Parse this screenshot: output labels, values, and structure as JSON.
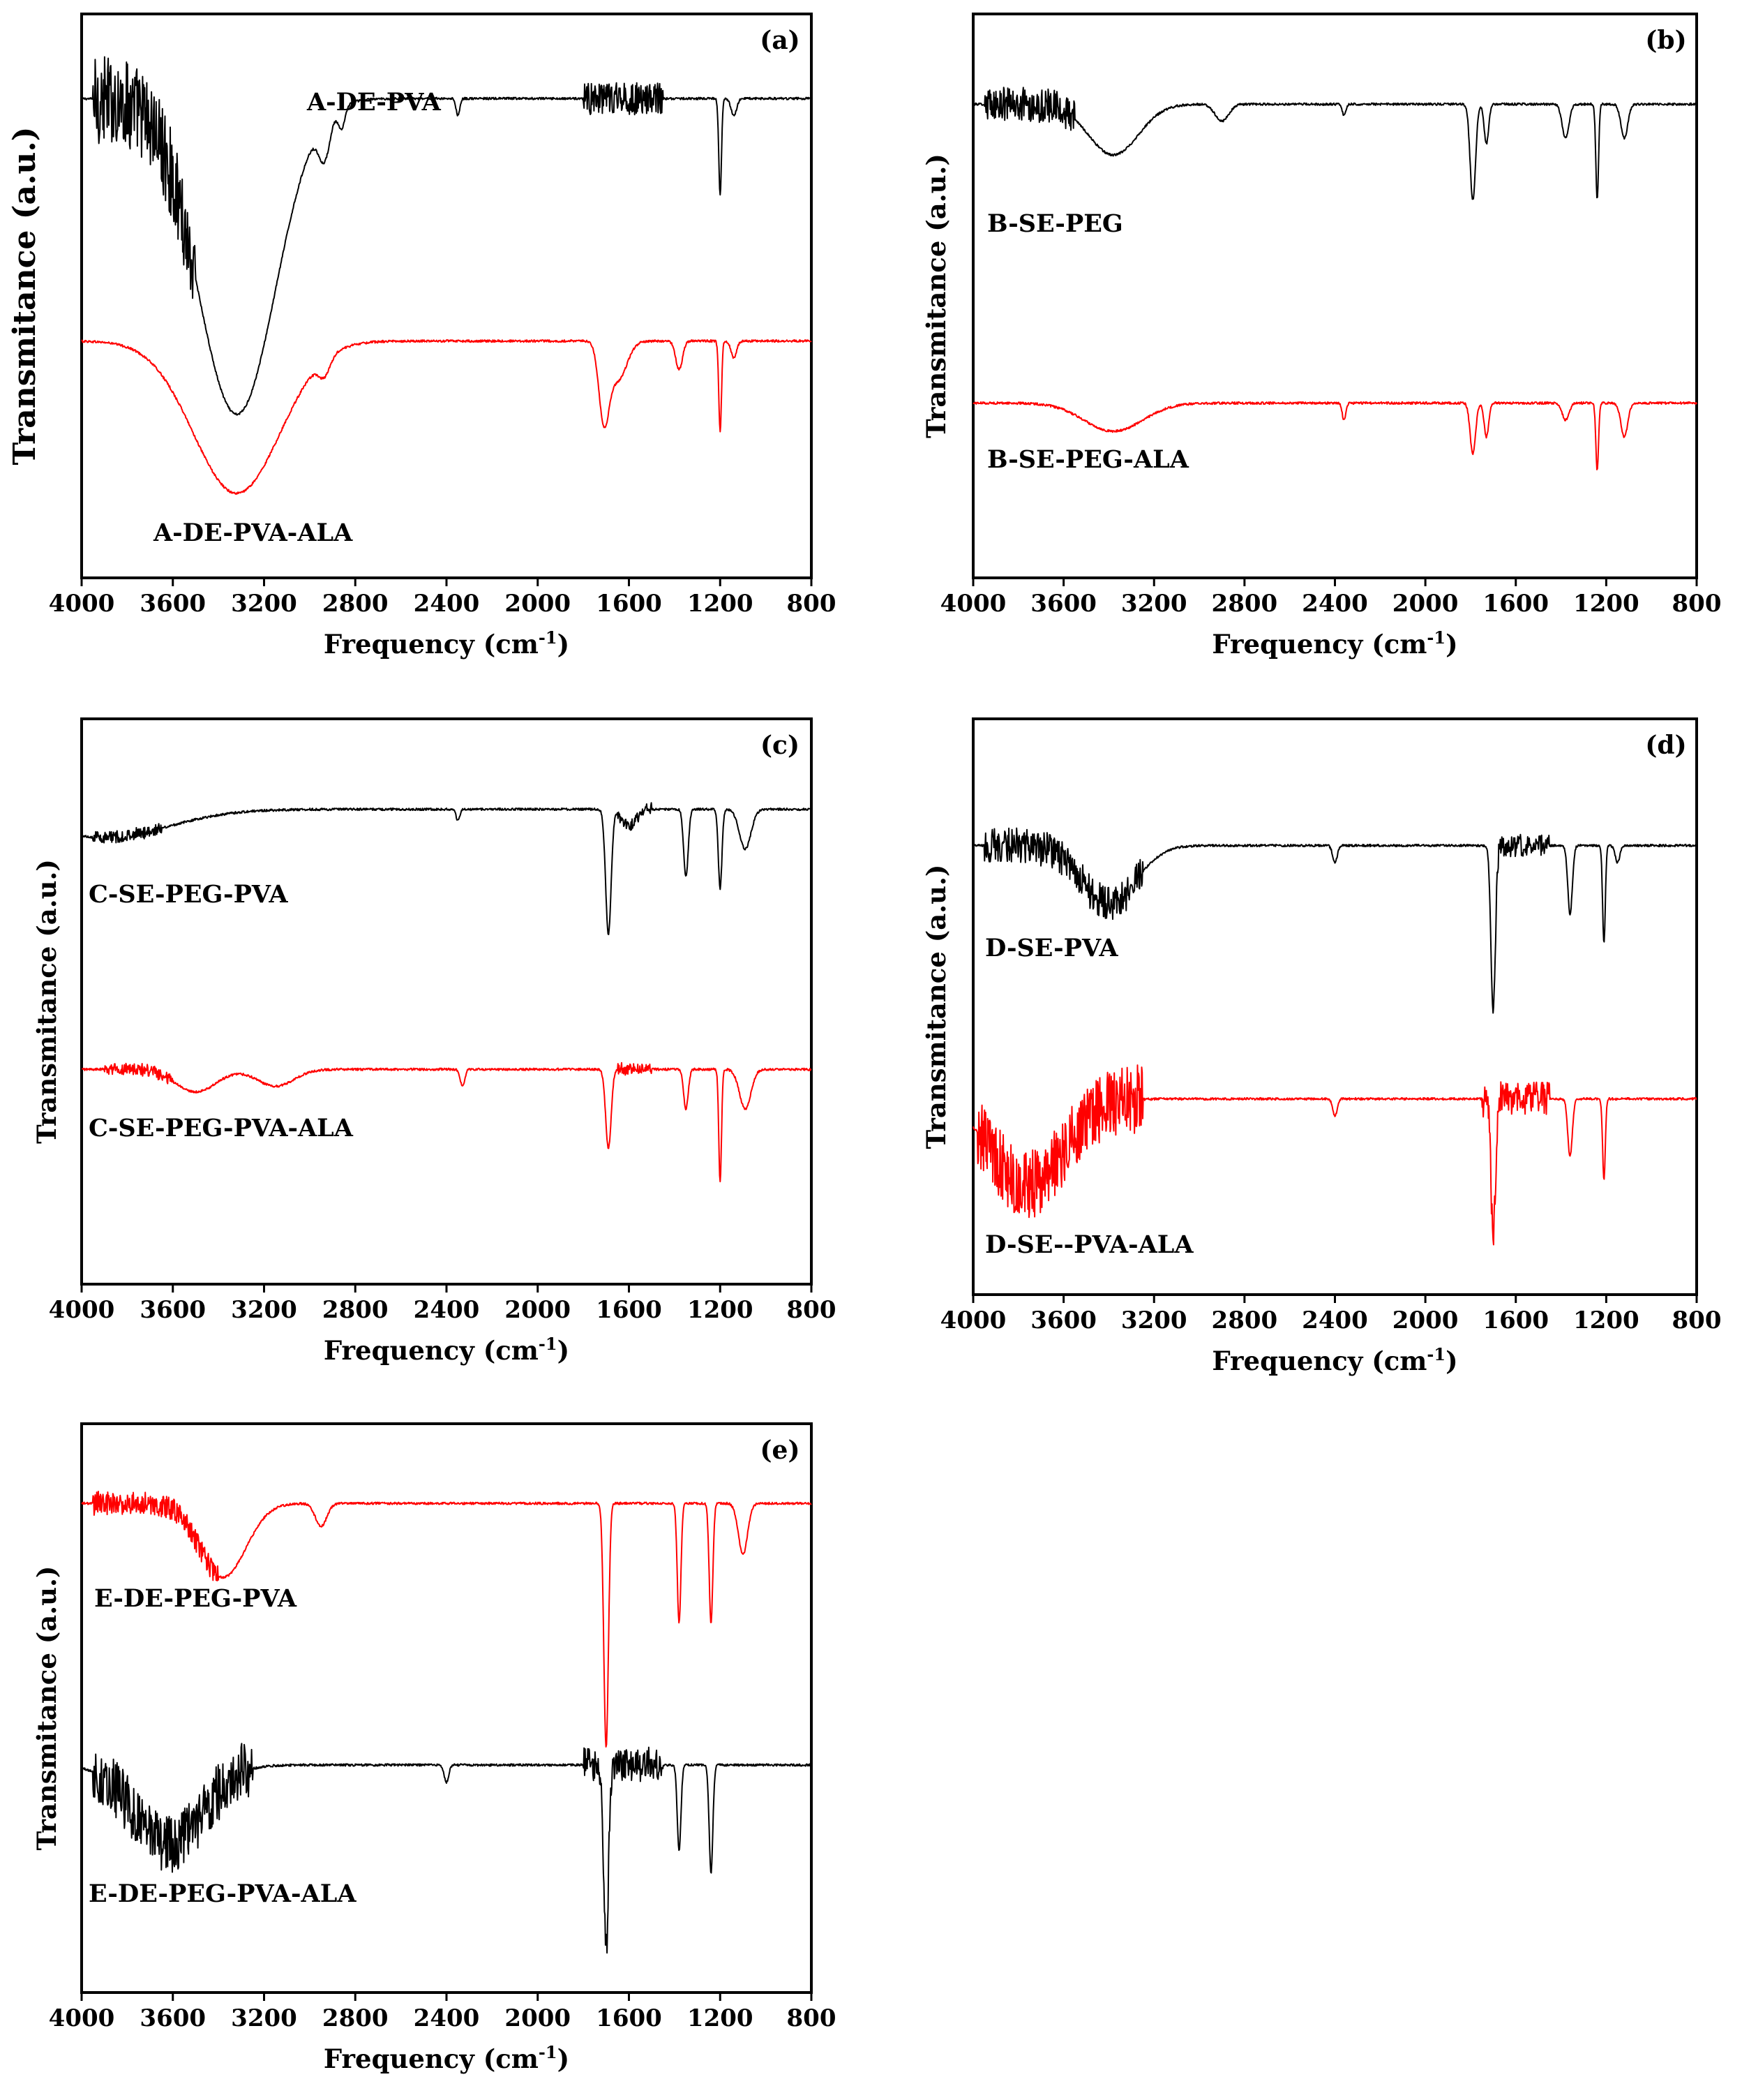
{
  "chart_data": [
    {
      "type": "line",
      "panel_label": "(a)",
      "xlabel_text": "Frequency (cm",
      "xlabel_sup": "-1",
      "xlabel_close": ")",
      "ylabel": "Transmitance (a.u.)",
      "xlim": [
        4000,
        800
      ],
      "x_reversed": true,
      "xticks": [
        "4000",
        "3600",
        "3200",
        "2800",
        "2400",
        "2000",
        "1600",
        "1200",
        "800"
      ],
      "series": [
        {
          "name": "A-DE-PVA",
          "color": "#000000",
          "baseline": 0.85,
          "noise": [
            [
              3950,
              3500,
              0.08
            ],
            [
              1800,
              1450,
              0.03
            ]
          ],
          "peaks": [
            [
              3320,
              170,
              0.56
            ],
            [
              2935,
              25,
              0.07
            ],
            [
              2860,
              15,
              0.04
            ],
            [
              2350,
              8,
              0.03
            ],
            [
              1200,
              6,
              0.17
            ],
            [
              1140,
              12,
              0.03
            ]
          ]
        },
        {
          "name": "A-DE-PVA-ALA",
          "color": "#ff0000",
          "baseline": 0.42,
          "noise": [],
          "peaks": [
            [
              3320,
              190,
              0.27
            ],
            [
              2935,
              25,
              0.03
            ],
            [
              1710,
              22,
              0.13
            ],
            [
              1650,
              40,
              0.07
            ],
            [
              1380,
              15,
              0.05
            ],
            [
              1200,
              6,
              0.16
            ],
            [
              1140,
              12,
              0.03
            ]
          ]
        }
      ]
    },
    {
      "type": "line",
      "panel_label": "(b)",
      "xlabel_text": "Frequency (cm",
      "xlabel_sup": "-1",
      "xlabel_close": ")",
      "ylabel": "Transmitance (a.u.)",
      "xlim": [
        4000,
        800
      ],
      "x_reversed": true,
      "xticks": [
        "4000",
        "3600",
        "3200",
        "2800",
        "2400",
        "2000",
        "1600",
        "1200",
        "800"
      ],
      "series": [
        {
          "name": "B-SE-PEG",
          "color": "#000000",
          "baseline": 0.84,
          "noise": [
            [
              3950,
              3550,
              0.03
            ]
          ],
          "peaks": [
            [
              3380,
              110,
              0.09
            ],
            [
              2900,
              30,
              0.03
            ],
            [
              2360,
              8,
              0.02
            ],
            [
              1790,
              12,
              0.17
            ],
            [
              1730,
              10,
              0.07
            ],
            [
              1380,
              15,
              0.06
            ],
            [
              1240,
              6,
              0.17
            ],
            [
              1120,
              15,
              0.06
            ]
          ]
        },
        {
          "name": "B-SE-PEG-ALA",
          "color": "#ff0000",
          "baseline": 0.31,
          "noise": [],
          "peaks": [
            [
              3380,
              130,
              0.05
            ],
            [
              2360,
              8,
              0.03
            ],
            [
              1790,
              12,
              0.09
            ],
            [
              1730,
              10,
              0.06
            ],
            [
              1380,
              15,
              0.03
            ],
            [
              1240,
              6,
              0.12
            ],
            [
              1120,
              15,
              0.06
            ]
          ]
        }
      ]
    },
    {
      "type": "line",
      "panel_label": "(c)",
      "xlabel_text": "Frequency (cm",
      "xlabel_sup": "-1",
      "xlabel_close": ")",
      "ylabel": "Transmitance (a.u.)",
      "xlim": [
        4000,
        800
      ],
      "x_reversed": true,
      "xticks": [
        "4000",
        "3600",
        "3200",
        "2800",
        "2400",
        "2000",
        "1600",
        "1200",
        "800"
      ],
      "series": [
        {
          "name": "C-SE-PEG-PVA",
          "color": "#000000",
          "baseline": 0.84,
          "noise": [
            [
              3950,
              3650,
              0.01
            ],
            [
              1650,
              1500,
              0.01
            ]
          ],
          "peaks": [
            [
              3900,
              280,
              0.05
            ],
            [
              2350,
              8,
              0.02
            ],
            [
              1690,
              12,
              0.22
            ],
            [
              1600,
              30,
              0.03
            ],
            [
              1350,
              10,
              0.12
            ],
            [
              1200,
              8,
              0.14
            ],
            [
              1090,
              25,
              0.07
            ]
          ]
        },
        {
          "name": "C-SE-PEG-PVA-ALA",
          "color": "#ff0000",
          "baseline": 0.38,
          "noise": [
            [
              3900,
              3600,
              0.01
            ],
            [
              1650,
              1500,
              0.01
            ]
          ],
          "peaks": [
            [
              3500,
              90,
              0.04
            ],
            [
              3150,
              80,
              0.03
            ],
            [
              2330,
              10,
              0.03
            ],
            [
              1690,
              12,
              0.14
            ],
            [
              1350,
              10,
              0.07
            ],
            [
              1200,
              6,
              0.2
            ],
            [
              1090,
              25,
              0.07
            ]
          ]
        }
      ]
    },
    {
      "type": "line",
      "panel_label": "(d)",
      "xlabel_text": "Frequency (cm",
      "xlabel_sup": "-1",
      "xlabel_close": ")",
      "ylabel": "Transmitance (a.u.)",
      "xlim": [
        4000,
        800
      ],
      "x_reversed": true,
      "xticks": [
        "4000",
        "3600",
        "3200",
        "2800",
        "2400",
        "2000",
        "1600",
        "1200",
        "800"
      ],
      "series": [
        {
          "name": "D-SE-PVA",
          "color": "#000000",
          "baseline": 0.78,
          "noise": [
            [
              3950,
              3250,
              0.03
            ],
            [
              1700,
              1450,
              0.02
            ]
          ],
          "peaks": [
            [
              3400,
              120,
              0.1
            ],
            [
              2400,
              10,
              0.03
            ],
            [
              1700,
              10,
              0.29
            ],
            [
              1360,
              10,
              0.12
            ],
            [
              1210,
              6,
              0.17
            ],
            [
              1150,
              10,
              0.03
            ]
          ]
        },
        {
          "name": "D-SE--PVA-ALA",
          "color": "#ff0000",
          "baseline": 0.34,
          "noise": [
            [
              3980,
              3250,
              0.06
            ],
            [
              1750,
              1450,
              0.03
            ]
          ],
          "peaks": [
            [
              3760,
              160,
              0.15
            ],
            [
              2400,
              10,
              0.03
            ],
            [
              1700,
              10,
              0.24
            ],
            [
              1360,
              10,
              0.1
            ],
            [
              1210,
              6,
              0.14
            ]
          ]
        }
      ]
    },
    {
      "type": "line",
      "panel_label": "(e)",
      "xlabel_text": "Frequency (cm",
      "xlabel_sup": "-1",
      "xlabel_close": ")",
      "ylabel": "Transmitance (a.u.)",
      "xlim": [
        4000,
        800
      ],
      "x_reversed": true,
      "xticks": [
        "4000",
        "3600",
        "3200",
        "2800",
        "2400",
        "2000",
        "1600",
        "1200",
        "800"
      ],
      "series": [
        {
          "name": "E-DE-PEG-PVA",
          "color": "#ff0000",
          "baseline": 0.86,
          "noise": [
            [
              3950,
              3400,
              0.02
            ]
          ],
          "peaks": [
            [
              3380,
              100,
              0.13
            ],
            [
              2950,
              25,
              0.04
            ],
            [
              1700,
              10,
              0.43
            ],
            [
              1380,
              8,
              0.21
            ],
            [
              1240,
              8,
              0.21
            ],
            [
              1100,
              20,
              0.09
            ]
          ]
        },
        {
          "name": "E-DE-PEG-PVA-ALA",
          "color": "#000000",
          "baseline": 0.4,
          "noise": [
            [
              3950,
              3250,
              0.05
            ],
            [
              1800,
              1450,
              0.03
            ]
          ],
          "peaks": [
            [
              3620,
              150,
              0.14
            ],
            [
              2400,
              10,
              0.03
            ],
            [
              1700,
              10,
              0.33
            ],
            [
              1380,
              8,
              0.15
            ],
            [
              1240,
              8,
              0.19
            ]
          ]
        }
      ]
    }
  ]
}
